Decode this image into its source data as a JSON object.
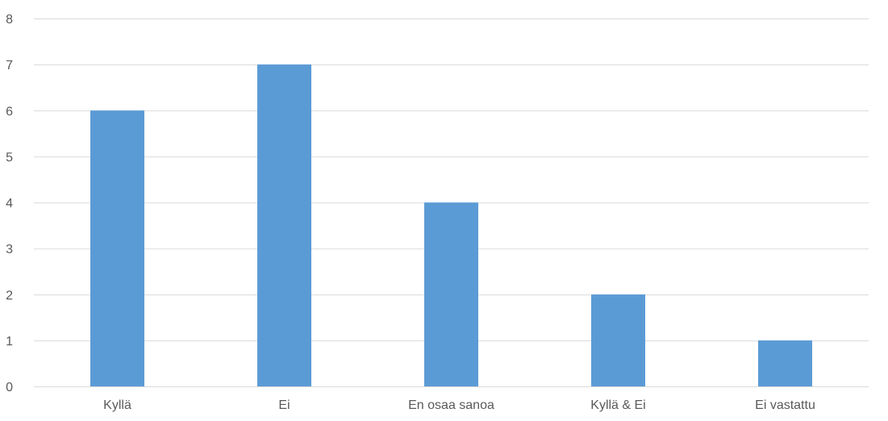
{
  "chart_data": {
    "type": "bar",
    "categories": [
      "Kyllä",
      "Ei",
      "En osaa sanoa",
      "Kyllä & Ei",
      "Ei vastattu"
    ],
    "series": [
      {
        "values": [
          6,
          7,
          4,
          2,
          1
        ]
      }
    ],
    "ylim": [
      0,
      8
    ],
    "y_ticks": [
      "0",
      "1",
      "2",
      "3",
      "4",
      "5",
      "6",
      "7",
      "8"
    ],
    "grid": true,
    "legend": "none",
    "bar_color": "#5b9bd5",
    "grid_color": "#d9d9d9",
    "text_color": "#595959"
  }
}
